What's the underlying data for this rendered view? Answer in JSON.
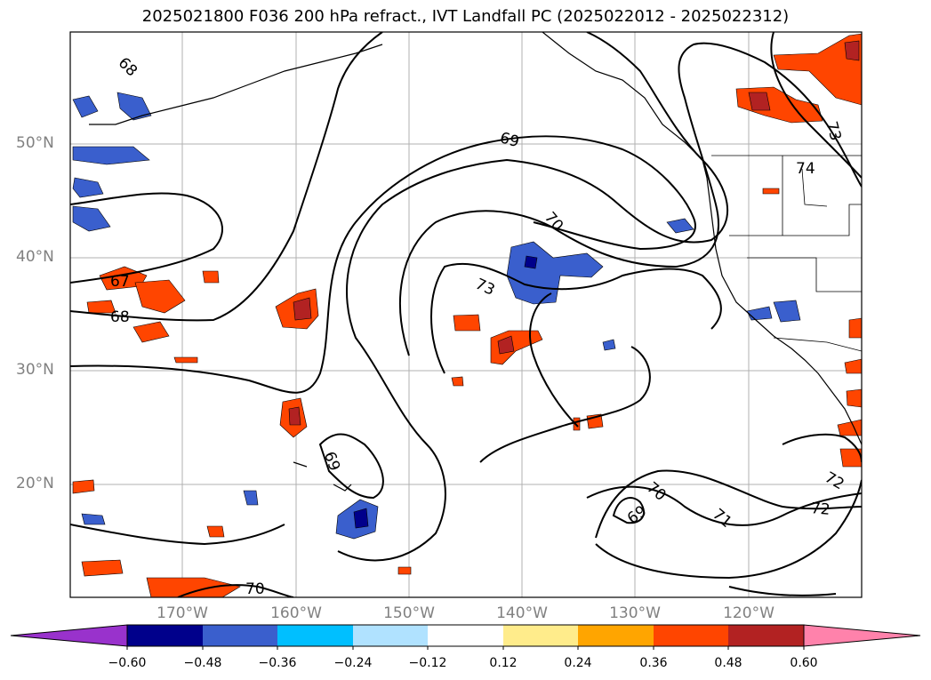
{
  "title": "2025021800 F036 200 hPa refract., IVT Landfall PC (2025022012 - 2025022312)",
  "lat_labels": [
    "50°N",
    "40°N",
    "30°N",
    "20°N"
  ],
  "lon_labels": [
    "170°W",
    "160°W",
    "150°W",
    "140°W",
    "130°W",
    "120°W"
  ],
  "contour_labels": [
    "68",
    "69",
    "70",
    "73",
    "67",
    "68",
    "69",
    "70",
    "69",
    "71",
    "72",
    "72",
    "73",
    "74",
    "70"
  ],
  "colorbar": {
    "ticks": [
      "−0.60",
      "−0.48",
      "−0.36",
      "−0.24",
      "−0.12",
      "0.12",
      "0.24",
      "0.36",
      "0.48",
      "0.60"
    ],
    "colors": [
      "#9932cc",
      "#00008b",
      "#3a5fcd",
      "#00bfff",
      "#b0e2ff",
      "#ffffff",
      "#ffec8b",
      "#ffa500",
      "#ff4500",
      "#b22222",
      "#ff82ab"
    ]
  },
  "colors": {
    "contour": "#000000",
    "grid": "#b0b0b0",
    "axis_label": "#808080"
  }
}
